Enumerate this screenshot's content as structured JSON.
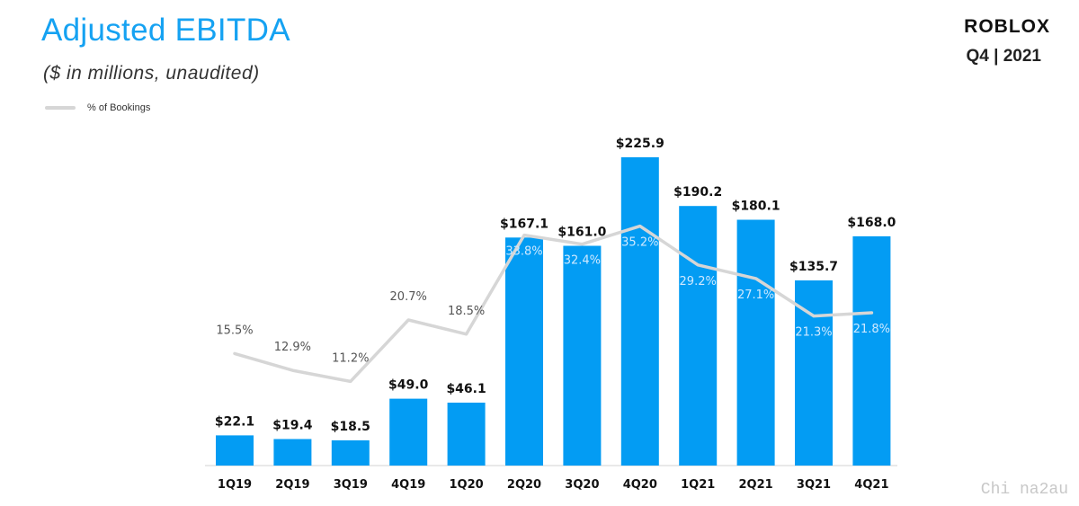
{
  "header": {
    "title": "Adjusted EBITDA",
    "subtitle": "($ in millions,  unaudited)",
    "logo": "ROBLOX",
    "period": "Q4 | 2021"
  },
  "watermark": "Chi na2au",
  "colors": {
    "bar": "#039cf3",
    "line": "#d6d6d6",
    "title": "#15a2f2",
    "pct_on_bar": "#cfe9ff",
    "pct_off_bar": "#555555"
  },
  "chart_data": {
    "type": "bar",
    "title": "Adjusted EBITDA",
    "subtitle": "($ in millions,  unaudited)",
    "categories": [
      "1Q19",
      "2Q19",
      "3Q19",
      "4Q19",
      "1Q20",
      "2Q20",
      "3Q20",
      "4Q20",
      "1Q21",
      "2Q21",
      "3Q21",
      "4Q21"
    ],
    "series": [
      {
        "type": "bar",
        "values": [
          22.1,
          19.4,
          18.5,
          49.0,
          46.1,
          167.1,
          161.0,
          225.9,
          190.2,
          180.1,
          135.7,
          168.0
        ],
        "labels": [
          "$22.1",
          "$19.4",
          "$18.5",
          "$49.0",
          "$46.1",
          "$167.1",
          "$161.0",
          "$225.9",
          "$190.2",
          "$180.1",
          "$135.7",
          "$168.0"
        ]
      },
      {
        "name": "% of Bookings",
        "type": "line",
        "values": [
          15.5,
          12.9,
          11.2,
          20.7,
          18.5,
          33.8,
          32.4,
          35.2,
          29.2,
          27.1,
          21.3,
          21.8
        ],
        "labels": [
          "15.5%",
          "12.9%",
          "11.2%",
          "20.7%",
          "18.5%",
          "33.8%",
          "32.4%",
          "35.2%",
          "29.2%",
          "27.1%",
          "21.3%",
          "21.8%"
        ]
      }
    ],
    "legend": "top-left",
    "grid": false
  }
}
